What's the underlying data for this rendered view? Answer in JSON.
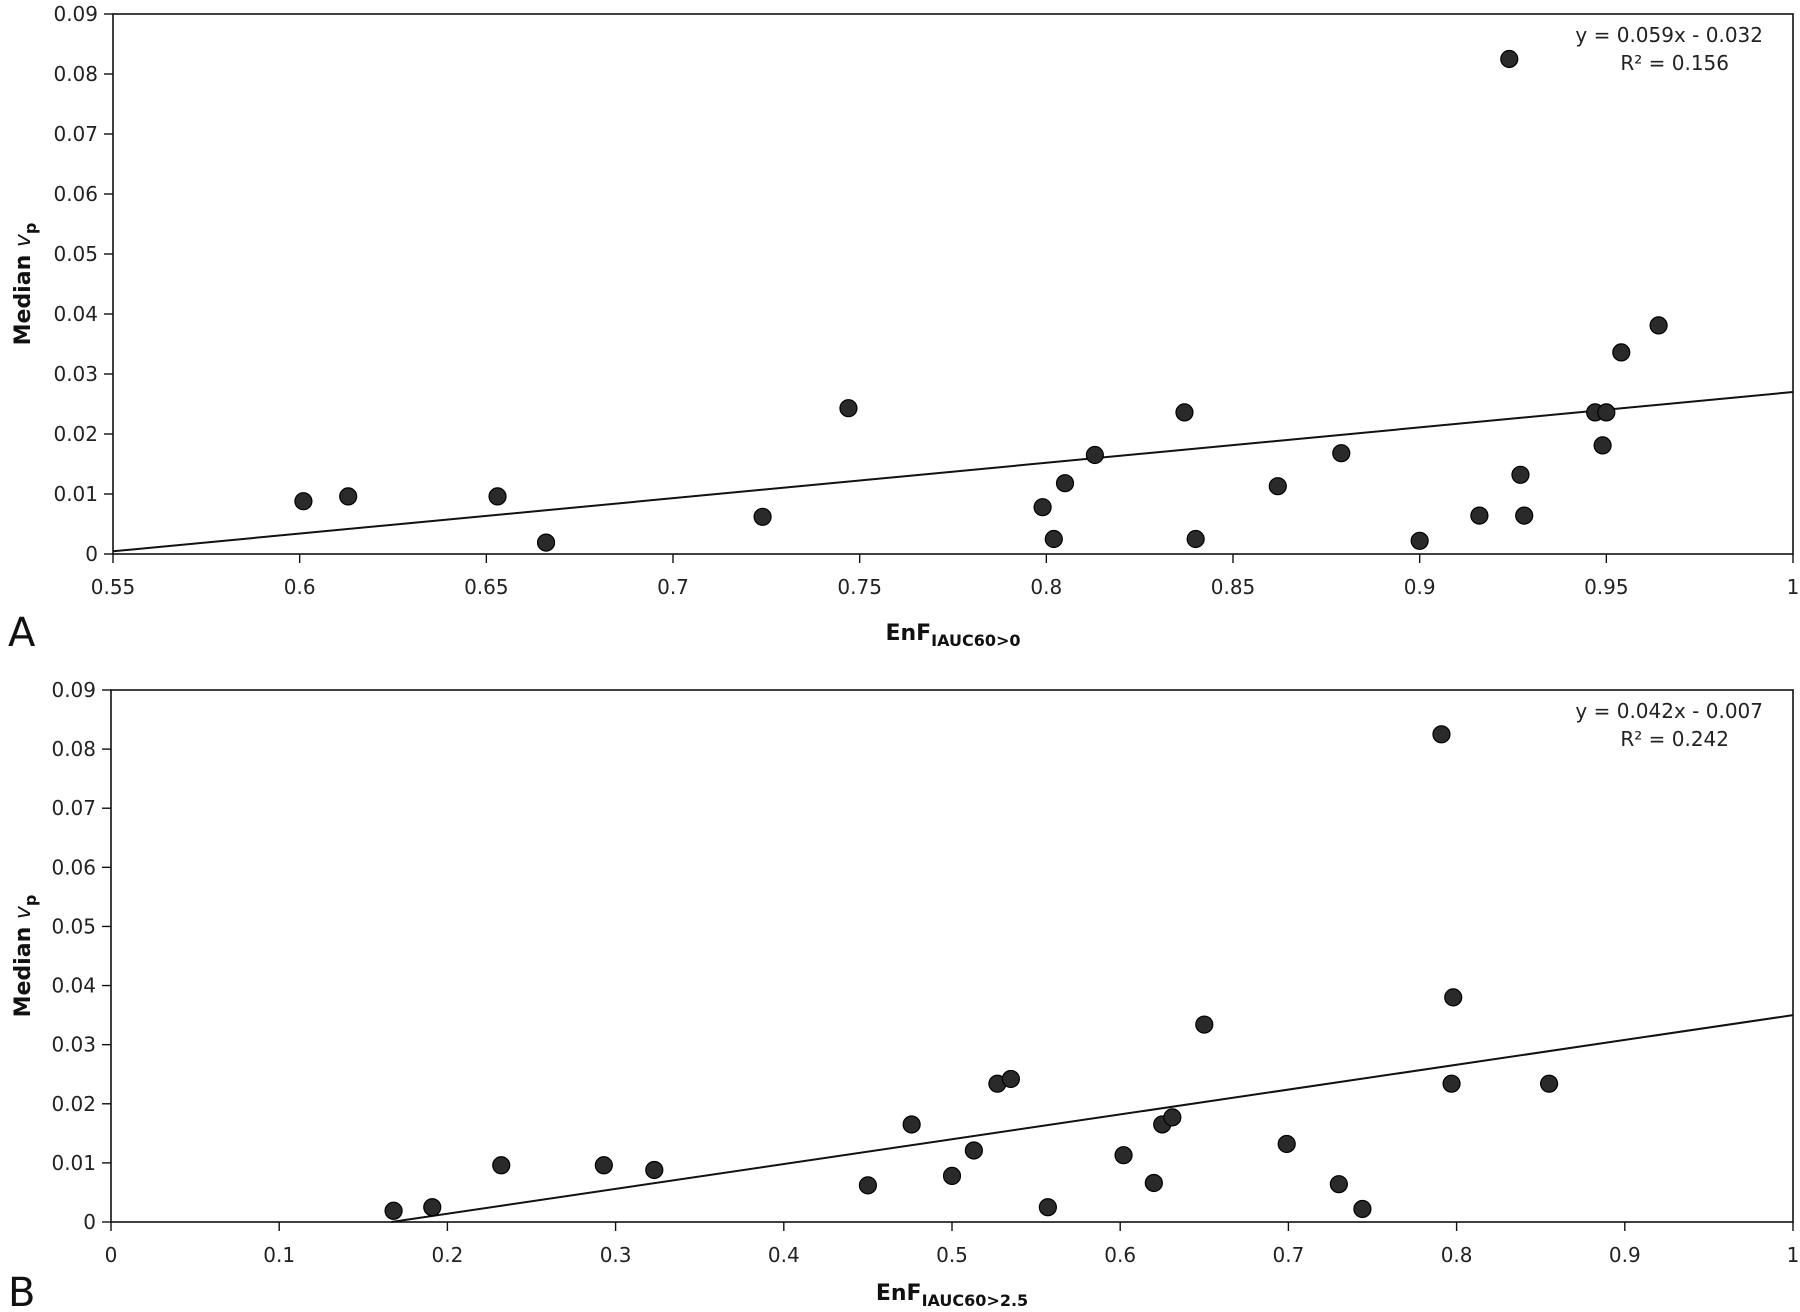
{
  "chart_data": [
    {
      "type": "scatter",
      "panel_label": "A",
      "ylabel": "Median",
      "ylabel_var": "v",
      "ylabel_sub": "p",
      "xlabel": "EnF",
      "xlabel_sub": "IAUC60>0",
      "equation": "y = 0.059x - 0.032",
      "r2": "R² = 0.156",
      "xlim": [
        0.55,
        1
      ],
      "ylim": [
        0,
        0.09
      ],
      "x_ticks": [
        "0.55",
        "0.6",
        "0.65",
        "0.7",
        "0.75",
        "0.8",
        "0.85",
        "0.9",
        "0.95",
        "1"
      ],
      "y_ticks": [
        "0",
        "0.01",
        "0.02",
        "0.03",
        "0.04",
        "0.05",
        "0.06",
        "0.07",
        "0.08",
        "0.09"
      ],
      "grid": false,
      "trendline": {
        "slope": 0.059,
        "intercept": -0.032
      },
      "points": [
        [
          0.601,
          0.0088
        ],
        [
          0.613,
          0.0096
        ],
        [
          0.653,
          0.0096
        ],
        [
          0.666,
          0.0019
        ],
        [
          0.724,
          0.0062
        ],
        [
          0.747,
          0.0243
        ],
        [
          0.799,
          0.0078
        ],
        [
          0.802,
          0.0025
        ],
        [
          0.805,
          0.0118
        ],
        [
          0.813,
          0.0165
        ],
        [
          0.837,
          0.0236
        ],
        [
          0.84,
          0.0025
        ],
        [
          0.862,
          0.0113
        ],
        [
          0.879,
          0.0168
        ],
        [
          0.9,
          0.0022
        ],
        [
          0.916,
          0.0064
        ],
        [
          0.924,
          0.0825
        ],
        [
          0.927,
          0.0132
        ],
        [
          0.928,
          0.0064
        ],
        [
          0.947,
          0.0236
        ],
        [
          0.949,
          0.0181
        ],
        [
          0.95,
          0.0236
        ],
        [
          0.954,
          0.0336
        ],
        [
          0.964,
          0.0381
        ]
      ]
    },
    {
      "type": "scatter",
      "panel_label": "B",
      "ylabel": "Median",
      "ylabel_var": "v",
      "ylabel_sub": "p",
      "xlabel": "EnF",
      "xlabel_sub": "IAUC60>2.5",
      "equation": "y = 0.042x - 0.007",
      "r2": "R² = 0.242",
      "xlim": [
        0,
        1
      ],
      "ylim": [
        0,
        0.09
      ],
      "x_ticks": [
        "0",
        "0.1",
        "0.2",
        "0.3",
        "0.4",
        "0.5",
        "0.6",
        "0.7",
        "0.8",
        "0.9",
        "1"
      ],
      "y_ticks": [
        "0",
        "0.01",
        "0.02",
        "0.03",
        "0.04",
        "0.05",
        "0.06",
        "0.07",
        "0.08",
        "0.09"
      ],
      "grid": false,
      "trendline": {
        "slope": 0.042,
        "intercept": -0.007
      },
      "points": [
        [
          0.168,
          0.0019
        ],
        [
          0.191,
          0.0025
        ],
        [
          0.232,
          0.0096
        ],
        [
          0.293,
          0.0096
        ],
        [
          0.323,
          0.0088
        ],
        [
          0.45,
          0.0062
        ],
        [
          0.476,
          0.0165
        ],
        [
          0.5,
          0.0078
        ],
        [
          0.513,
          0.0121
        ],
        [
          0.527,
          0.0234
        ],
        [
          0.535,
          0.0242
        ],
        [
          0.557,
          0.0025
        ],
        [
          0.602,
          0.0113
        ],
        [
          0.62,
          0.0066
        ],
        [
          0.625,
          0.0165
        ],
        [
          0.631,
          0.0177
        ],
        [
          0.65,
          0.0334
        ],
        [
          0.699,
          0.0132
        ],
        [
          0.73,
          0.0064
        ],
        [
          0.744,
          0.0022
        ],
        [
          0.791,
          0.0825
        ],
        [
          0.797,
          0.0234
        ],
        [
          0.798,
          0.038
        ],
        [
          0.855,
          0.0234
        ]
      ]
    }
  ]
}
